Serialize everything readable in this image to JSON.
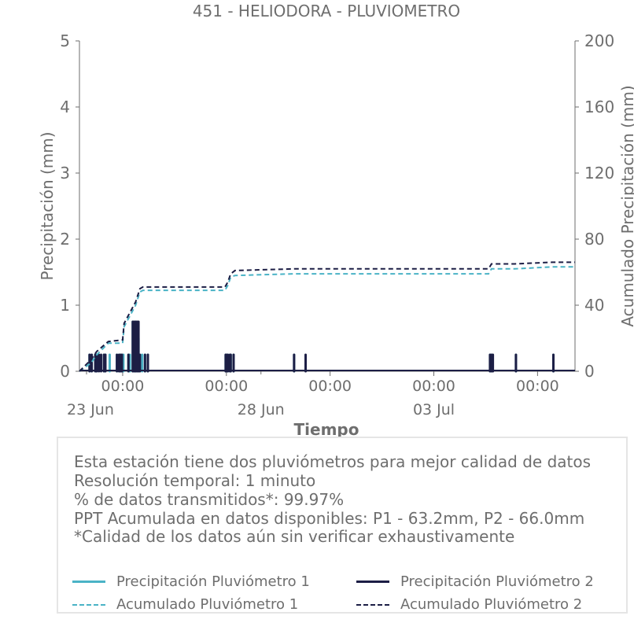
{
  "chart_data": {
    "type": "bar+line",
    "title": "451 - HELIODORA - PLUVIOMETRO",
    "xlabel": "Tiempo",
    "ylabel_left": "Precipitación (mm)",
    "ylabel_right": "Acumulado Precipitación (mm)",
    "x_range": [
      "2025-06-22T18:00",
      "2025-07-07T02:00"
    ],
    "ylim_left": [
      0,
      5
    ],
    "ylim_right": [
      0,
      200
    ],
    "yticks_left": [
      0,
      1,
      2,
      3,
      4,
      5
    ],
    "yticks_right": [
      0,
      40,
      80,
      120,
      160,
      200
    ],
    "xticks": [
      {
        "t": "2025-06-24T00:00",
        "label": "00:00",
        "sublabel": "23 Jun"
      },
      {
        "t": "2025-06-27T00:00",
        "label": "00:00",
        "sublabel": ""
      },
      {
        "t": "2025-06-30T00:00",
        "label": "00:00",
        "sublabel": ""
      },
      {
        "t": "2025-07-03T00:00",
        "label": "00:00",
        "sublabel": ""
      },
      {
        "t": "2025-07-06T00:00",
        "label": "00:00",
        "sublabel": ""
      }
    ],
    "minor_labels": [
      {
        "t": "2025-06-28T00:00",
        "label": "28 Jun"
      },
      {
        "t": "2025-07-03T00:00",
        "label": "03 Jul"
      }
    ],
    "grid": false,
    "legend_position": "bottom",
    "colors": {
      "p1": "#4ab3c6",
      "p2": "#1c1e45"
    },
    "series": [
      {
        "name": "Precipitación Pluviómetro 1",
        "axis": "left",
        "style": "bar",
        "x": [
          "2025-06-23T01:00",
          "2025-06-23T02:30",
          "2025-06-23T05:00",
          "2025-06-23T06:00",
          "2025-06-23T11:00",
          "2025-06-23T12:00",
          "2025-06-23T15:00",
          "2025-06-23T20:00",
          "2025-06-23T21:30",
          "2025-06-23T22:30",
          "2025-06-23T23:30",
          "2025-06-24T00:30",
          "2025-06-24T04:00",
          "2025-06-24T05:00",
          "2025-06-24T07:00",
          "2025-06-24T08:30",
          "2025-06-24T09:00",
          "2025-06-24T11:00",
          "2025-06-24T13:30",
          "2025-06-24T15:30",
          "2025-06-24T17:30",
          "2025-06-26T23:30",
          "2025-06-27T00:00",
          "2025-06-27T01:00",
          "2025-06-27T02:30",
          "2025-06-27T03:00",
          "2025-06-27T05:00",
          "2025-06-28T23:00",
          "2025-07-04T15:00",
          "2025-07-04T16:00",
          "2025-07-05T09:00",
          "2025-07-06T11:00"
        ],
        "values": [
          0.25,
          0.25,
          0.25,
          0.25,
          0.25,
          0.25,
          0.25,
          0.25,
          0.25,
          0.25,
          0.25,
          0.25,
          0.25,
          0.25,
          0.75,
          0.25,
          0.75,
          0.5,
          0.25,
          0.25,
          0.25,
          0.25,
          0.25,
          0.25,
          0.25,
          0.25,
          0.25,
          0.25,
          0.25,
          0.25,
          0.25,
          0.25
        ]
      },
      {
        "name": "Precipitación Pluviómetro 2",
        "axis": "left",
        "style": "bar",
        "x": [
          "2025-06-23T01:00",
          "2025-06-23T02:30",
          "2025-06-23T05:00",
          "2025-06-23T06:00",
          "2025-06-23T07:30",
          "2025-06-23T09:00",
          "2025-06-23T11:00",
          "2025-06-23T12:00",
          "2025-06-23T20:00",
          "2025-06-23T21:30",
          "2025-06-23T22:30",
          "2025-06-23T23:30",
          "2025-06-24T04:00",
          "2025-06-24T07:00",
          "2025-06-24T08:00",
          "2025-06-24T09:00",
          "2025-06-24T10:00",
          "2025-06-24T11:00",
          "2025-06-24T12:00",
          "2025-06-24T15:30",
          "2025-06-24T17:30",
          "2025-06-26T23:30",
          "2025-06-27T00:00",
          "2025-06-27T01:00",
          "2025-06-27T02:30",
          "2025-06-27T03:00",
          "2025-06-27T05:00",
          "2025-06-28T23:00",
          "2025-06-29T07:00",
          "2025-07-04T15:00",
          "2025-07-04T16:00",
          "2025-07-04T17:00",
          "2025-07-05T09:00",
          "2025-07-06T11:00"
        ],
        "values": [
          0.25,
          0.25,
          0.25,
          0.25,
          0.25,
          0.25,
          0.25,
          0.25,
          0.25,
          0.25,
          0.25,
          0.25,
          0.25,
          0.75,
          0.75,
          0.75,
          0.75,
          0.75,
          0.25,
          0.25,
          0.25,
          0.25,
          0.25,
          0.25,
          0.25,
          0.25,
          0.25,
          0.25,
          0.25,
          0.25,
          0.25,
          0.25,
          0.25,
          0.25
        ]
      },
      {
        "name": "Acumulado Pluviómetro 1",
        "axis": "right",
        "style": "dashed-line",
        "x": [
          "2025-06-22T18:00",
          "2025-06-23T02:00",
          "2025-06-23T06:00",
          "2025-06-23T14:00",
          "2025-06-24T00:00",
          "2025-06-24T01:00",
          "2025-06-24T09:00",
          "2025-06-24T12:00",
          "2025-06-24T14:00",
          "2025-06-26T23:00",
          "2025-06-27T01:00",
          "2025-06-27T03:00",
          "2025-06-27T06:00",
          "2025-06-28T23:00",
          "2025-07-04T14:00",
          "2025-07-04T16:00",
          "2025-07-05T08:00",
          "2025-07-06T10:00",
          "2025-07-07T02:00"
        ],
        "values": [
          0,
          5,
          10,
          17,
          17,
          27,
          40,
          48,
          49,
          49,
          52,
          57,
          58,
          59,
          59,
          62,
          62,
          63.2,
          63.2
        ]
      },
      {
        "name": "Acumulado Pluviómetro 2",
        "axis": "right",
        "style": "dashed-line",
        "x": [
          "2025-06-22T18:00",
          "2025-06-23T02:00",
          "2025-06-23T06:00",
          "2025-06-23T14:00",
          "2025-06-24T00:00",
          "2025-06-24T01:00",
          "2025-06-24T09:00",
          "2025-06-24T12:00",
          "2025-06-24T14:00",
          "2025-06-26T23:00",
          "2025-06-27T01:00",
          "2025-06-27T03:00",
          "2025-06-27T06:00",
          "2025-06-28T23:00",
          "2025-07-04T14:00",
          "2025-07-04T16:00",
          "2025-07-05T08:00",
          "2025-07-06T10:00",
          "2025-07-07T02:00"
        ],
        "values": [
          0,
          7,
          12,
          18,
          19,
          29,
          42,
          50,
          51,
          51,
          54,
          59,
          61,
          62,
          62,
          65,
          65,
          66,
          66
        ]
      }
    ]
  },
  "info": {
    "line1": "Esta estación tiene dos pluviómetros para mejor calidad de datos",
    "line2": "Resolución temporal: 1 minuto",
    "line3": "% de datos transmitidos*: 99.97%",
    "line4": "PPT Acumulada en datos disponibles: P1 - 63.2mm, P2 - 66.0mm",
    "line5": "*Calidad de los datos aún sin verificar exhaustivamente"
  },
  "legend": {
    "items": [
      {
        "label": "Precipitación Pluviómetro 1",
        "color": "#4ab3c6",
        "dash": "solid"
      },
      {
        "label": "Precipitación Pluviómetro 2",
        "color": "#1c1e45",
        "dash": "solid"
      },
      {
        "label": "Acumulado Pluviómetro 1",
        "color": "#4ab3c6",
        "dash": "dashed"
      },
      {
        "label": "Acumulado Pluviómetro 2",
        "color": "#1c1e45",
        "dash": "dashed"
      }
    ]
  }
}
